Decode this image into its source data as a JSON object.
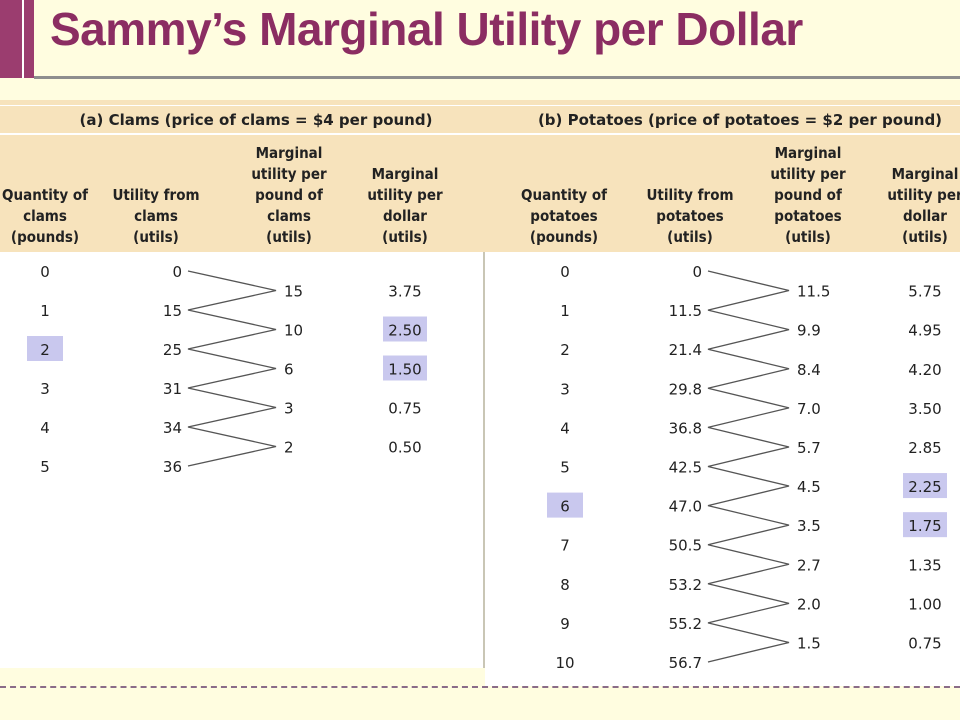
{
  "title": "Sammy’s Marginal Utility per Dollar",
  "colors": {
    "accent": "#8b2d62",
    "table_bg": "#f7e3bc",
    "highlight": "#c9c8ee"
  },
  "panels": [
    {
      "section_title": "(a) Clams (price of clams = $4 per pound)",
      "headers": [
        [
          "Quantity of",
          "clams",
          "(pounds)"
        ],
        [
          "Utility from",
          "clams",
          "(utils)"
        ],
        [
          "Marginal",
          "utility per",
          "pound of",
          "clams",
          "(utils)"
        ],
        [
          "Marginal",
          "utility per",
          "dollar",
          "(utils)"
        ]
      ],
      "quantities": [
        "0",
        "1",
        "2",
        "3",
        "4",
        "5"
      ],
      "utilities": [
        "0",
        "15",
        "25",
        "31",
        "34",
        "36"
      ],
      "marginal_utilities": [
        "15",
        "10",
        "6",
        "3",
        "2"
      ],
      "mu_per_dollar": [
        "3.75",
        "2.50",
        "1.50",
        "0.75",
        "0.50"
      ],
      "highlight_quantity": 2,
      "highlight_mu_per_dollar": [
        1,
        2
      ]
    },
    {
      "section_title": "(b) Potatoes (price of potatoes = $2 per pound)",
      "headers": [
        [
          "Quantity of",
          "potatoes",
          "(pounds)"
        ],
        [
          "Utility from",
          "potatoes",
          "(utils)"
        ],
        [
          "Marginal",
          "utility per",
          "pound of",
          "potatoes",
          "(utils)"
        ],
        [
          "Marginal",
          "utility per",
          "dollar",
          "(utils)"
        ]
      ],
      "quantities": [
        "0",
        "1",
        "2",
        "3",
        "4",
        "5",
        "6",
        "7",
        "8",
        "9",
        "10"
      ],
      "utilities": [
        "0",
        "11.5",
        "21.4",
        "29.8",
        "36.8",
        "42.5",
        "47.0",
        "50.5",
        "53.2",
        "55.2",
        "56.7"
      ],
      "marginal_utilities": [
        "11.5",
        "9.9",
        "8.4",
        "7.0",
        "5.7",
        "4.5",
        "3.5",
        "2.7",
        "2.0",
        "1.5"
      ],
      "mu_per_dollar": [
        "5.75",
        "4.95",
        "4.20",
        "3.50",
        "2.85",
        "2.25",
        "1.75",
        "1.35",
        "1.00",
        "0.75"
      ],
      "highlight_quantity": 6,
      "highlight_mu_per_dollar": [
        5,
        6
      ]
    }
  ]
}
